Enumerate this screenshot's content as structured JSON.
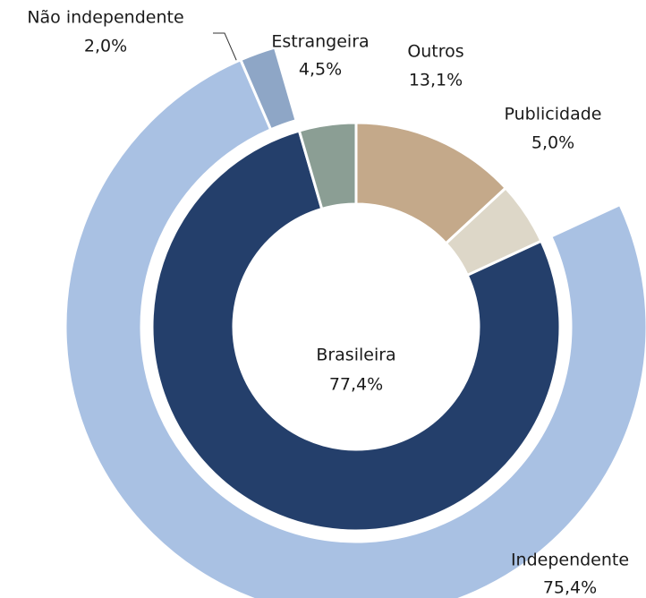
{
  "chart_data": {
    "type": "nested-donut",
    "rings": [
      {
        "categories": [
          "Outros",
          "Publicidade",
          "Brasileira",
          "Estrangeira"
        ],
        "values": [
          13.1,
          5.0,
          77.4,
          4.5
        ],
        "value_labels": [
          "13,1%",
          "5,0%",
          "77,4%",
          "4,5%"
        ],
        "colors": [
          "#c4a98a",
          "#ddd7c8",
          "#243f6b",
          "#8b9e94"
        ]
      },
      {
        "categories": [
          "Independente",
          "Não independente"
        ],
        "values": [
          75.4,
          2.0
        ],
        "value_labels": [
          "75,4%",
          "2,0%"
        ],
        "colors": [
          "#a9c1e3",
          "#8ea6c6"
        ]
      }
    ]
  }
}
